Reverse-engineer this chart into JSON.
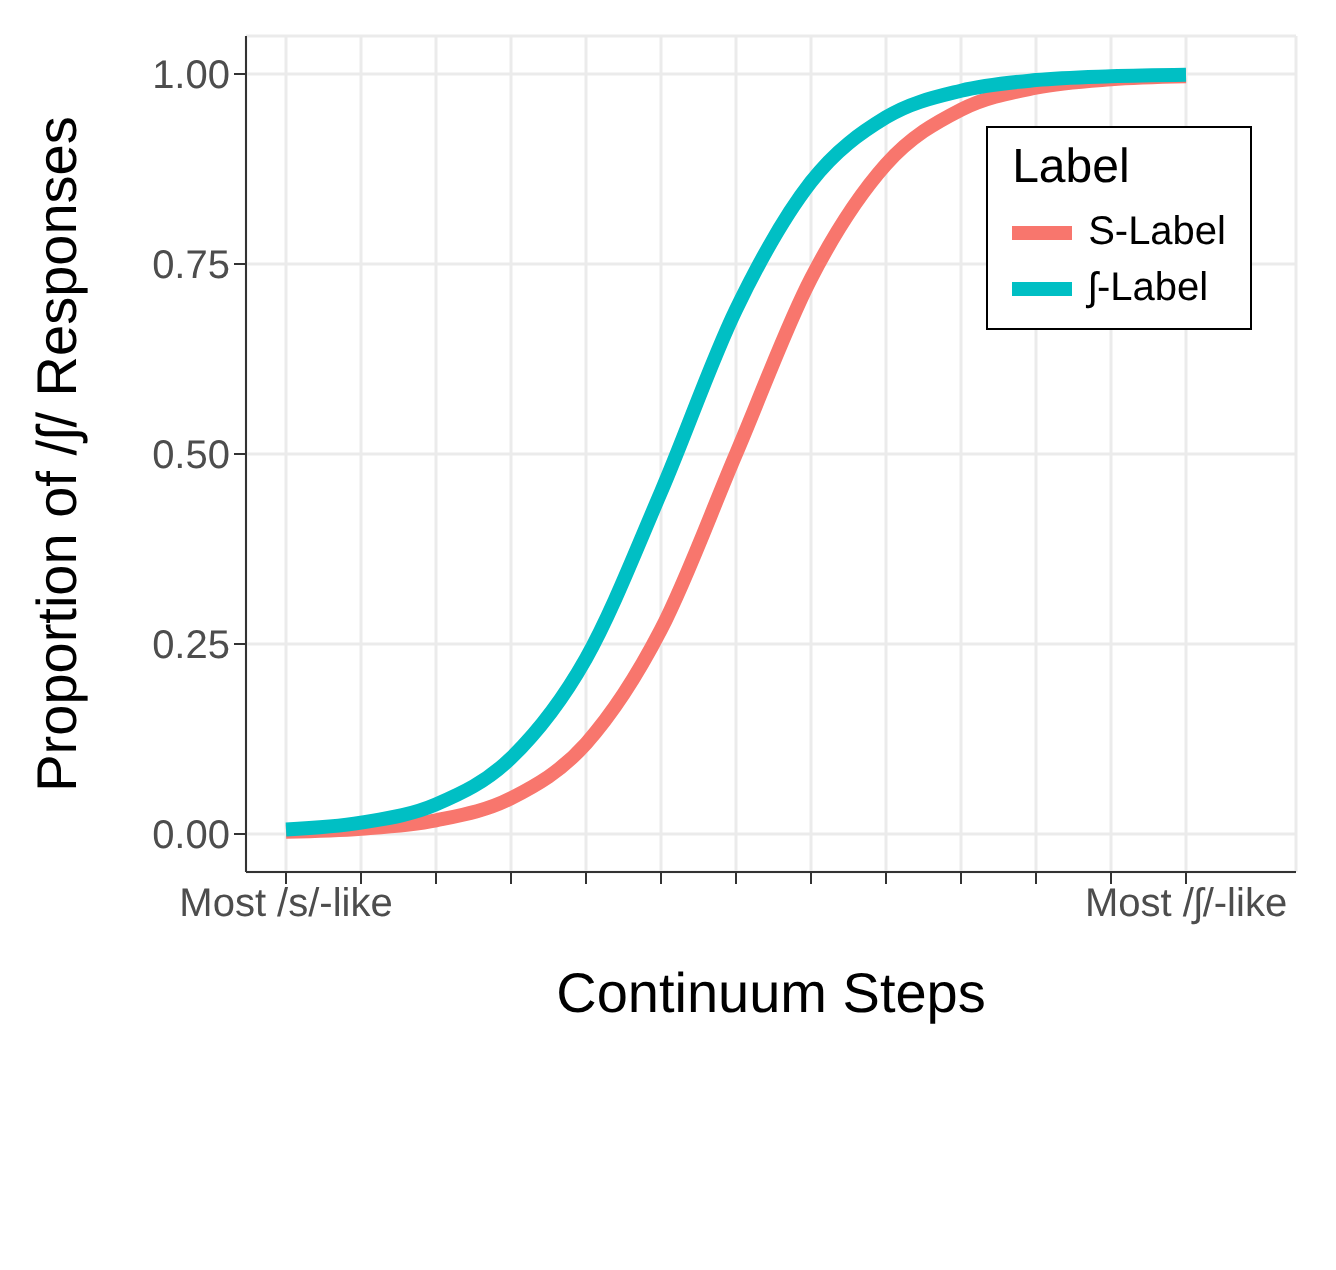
{
  "chart_data": {
    "type": "line",
    "xlabel": "Continuum Steps",
    "ylabel": "Proportion of /ʃ/ Responses",
    "legend_title": "Label",
    "categories": [
      "Most /s/-like",
      null,
      null,
      null,
      null,
      null,
      null,
      null,
      null,
      null,
      null,
      null,
      "Most /ʃ/-like"
    ],
    "series": [
      {
        "name": "S-Label",
        "color": "#f8766d",
        "values": [
          0.003,
          0.007,
          0.018,
          0.047,
          0.119,
          0.269,
          0.5,
          0.731,
          0.881,
          0.953,
          0.982,
          0.993,
          0.997
        ]
      },
      {
        "name": "ʃ-Label",
        "color": "#00bfc4",
        "values": [
          0.006,
          0.015,
          0.039,
          0.1,
          0.231,
          0.45,
          0.69,
          0.858,
          0.943,
          0.978,
          0.992,
          0.997,
          0.999
        ]
      }
    ],
    "ylim": [
      -0.05,
      1.05
    ],
    "yticks": [
      {
        "value": 0,
        "label": "0.00"
      },
      {
        "value": 0.25,
        "label": "0.25"
      },
      {
        "value": 0.5,
        "label": "0.50"
      },
      {
        "value": 0.75,
        "label": "0.75"
      },
      {
        "value": 1,
        "label": "1.00"
      }
    ],
    "grid": true,
    "legend": "top right",
    "marker": "none",
    "line_style": "solid"
  }
}
